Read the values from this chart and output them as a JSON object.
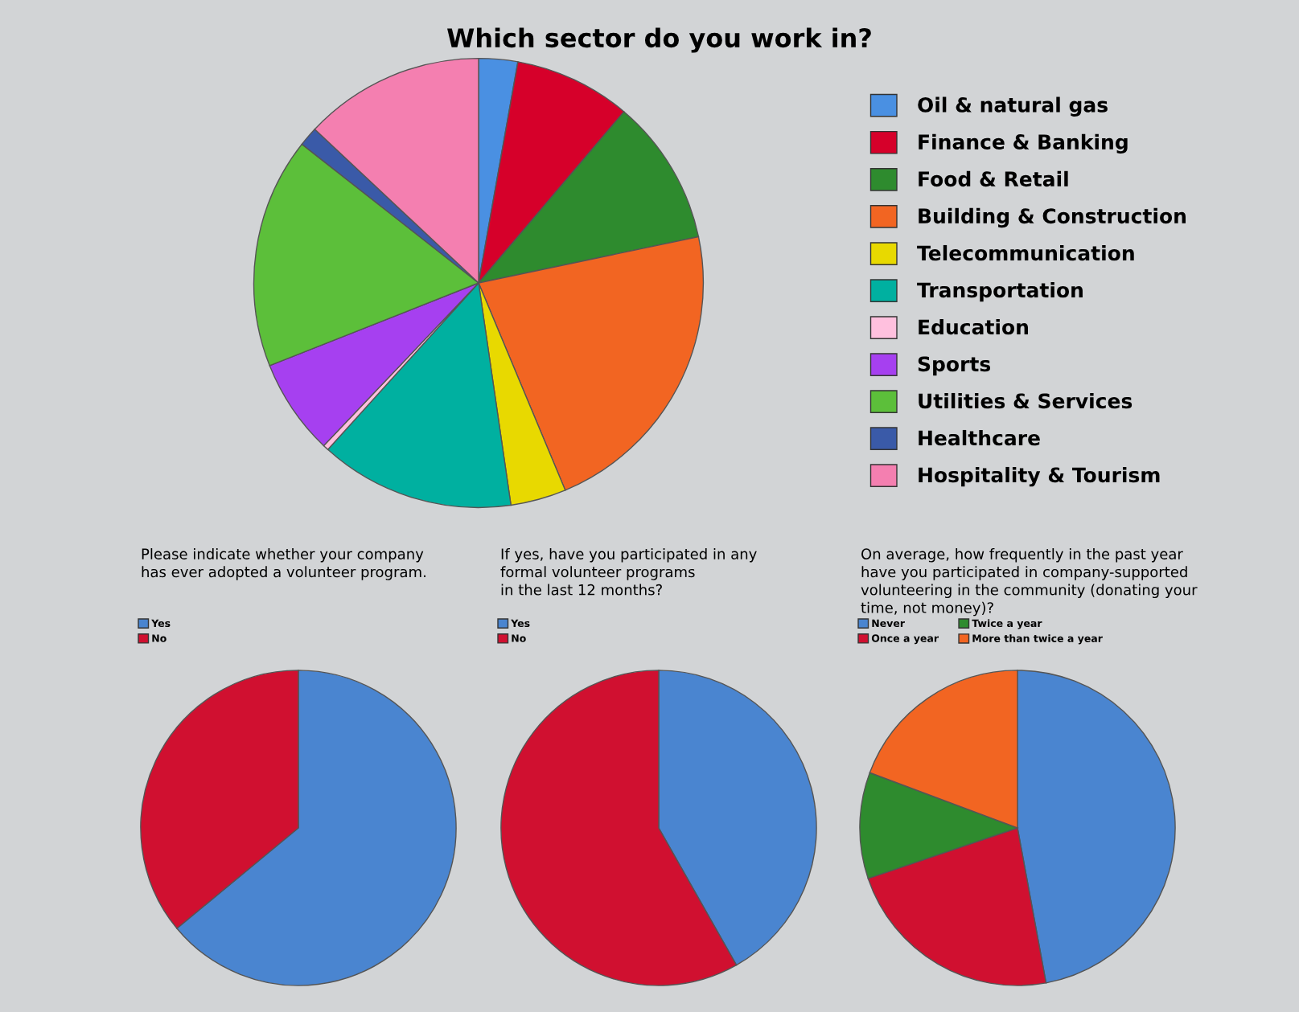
{
  "chart_data": [
    {
      "type": "pie",
      "title": "Which sector do you work in?",
      "legend": "right",
      "categories": [
        "Oil & natural gas",
        "Finance & Banking",
        "Food & Retail",
        "Building & Construction",
        "Telecommunication",
        "Transportation",
        "Education",
        "Sports",
        "Utilities & Services",
        "Healthcare",
        "Hospitality & Tourism"
      ],
      "values": [
        2.8,
        8.4,
        10.5,
        22.0,
        4.0,
        14.0,
        0.4,
        6.9,
        16.6,
        1.4,
        13.0
      ],
      "colors": [
        "#4a90e2",
        "#d6002a",
        "#2e8b2e",
        "#f26522",
        "#e8d900",
        "#00b0a0",
        "#ffc0de",
        "#a640f0",
        "#5cbf3a",
        "#3a5aa8",
        "#f47fb0"
      ]
    },
    {
      "type": "pie",
      "title": "Please indicate whether your company\nhas ever adopted a volunteer program.",
      "legend": "top left",
      "categories": [
        "Yes",
        "No"
      ],
      "values": [
        64,
        36
      ],
      "colors": [
        "#4a85d0",
        "#d01030"
      ]
    },
    {
      "type": "pie",
      "title": "If yes, have you participated in any\nformal volunteer programs\nin the last 12 months?",
      "legend": "top left",
      "categories": [
        "Yes",
        "No"
      ],
      "values": [
        41.8,
        58.2
      ],
      "colors": [
        "#4a85d0",
        "#d01030"
      ]
    },
    {
      "type": "pie",
      "title": "On average, how frequently in the past year\nhave you participated in company-supported\nvolunteering in the community (donating your\ntime, not money)?",
      "legend": "top left",
      "categories": [
        "Never",
        "Once a year",
        "Twice a year",
        "More than twice a year"
      ],
      "values": [
        47.1,
        22.7,
        10.9,
        19.3
      ],
      "colors": [
        "#4a85d0",
        "#d01030",
        "#2e8b2e",
        "#f26522"
      ]
    }
  ]
}
